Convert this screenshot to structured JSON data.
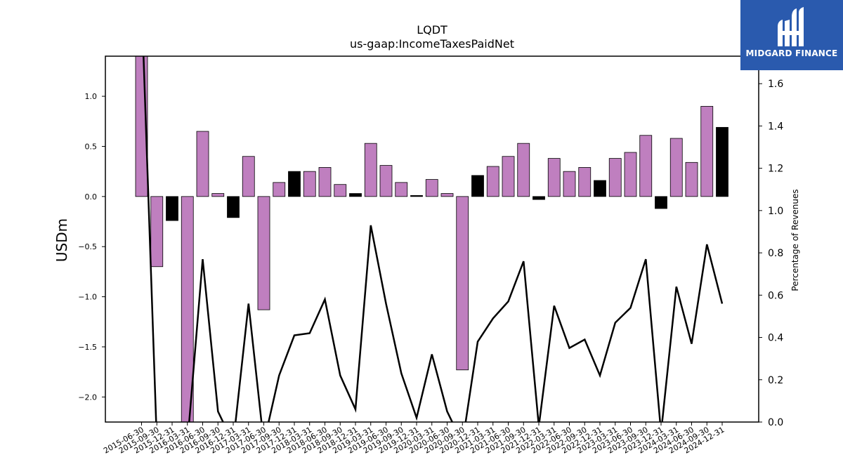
{
  "logo": {
    "text": "MIDGARD FINANCE"
  },
  "chart_data": {
    "type": "bar",
    "title": "LQDT",
    "subtitle": "us-gaap:IncomeTaxesPaidNet",
    "ylabel": "USDm",
    "ylabel_right": "Percentage of Revenues",
    "ylim": [
      -2.25,
      1.4
    ],
    "ylim_right": [
      0.0,
      1.73
    ],
    "yticks": [
      -2.0,
      -1.5,
      -1.0,
      -0.5,
      0.0,
      0.5,
      1.0
    ],
    "yticks_right": [
      0.0,
      0.2,
      0.4,
      0.6,
      0.8,
      1.0,
      1.2,
      1.4,
      1.6
    ],
    "grid": false,
    "categories": [
      "2015-06-30",
      "2015-09-30",
      "2015-12-31",
      "2016-03-31",
      "2016-06-30",
      "2016-09-30",
      "2016-12-31",
      "2017-03-31",
      "2017-06-30",
      "2017-09-30",
      "2017-12-31",
      "2018-03-31",
      "2018-06-30",
      "2018-09-30",
      "2018-12-31",
      "2019-03-31",
      "2019-06-30",
      "2019-09-30",
      "2019-12-31",
      "2020-03-31",
      "2020-06-30",
      "2020-09-30",
      "2020-12-31",
      "2021-03-31",
      "2021-06-30",
      "2021-09-30",
      "2021-12-31",
      "2022-03-31",
      "2022-06-30",
      "2022-09-30",
      "2022-12-31",
      "2023-03-31",
      "2023-06-30",
      "2023-09-30",
      "2023-12-31",
      "2024-03-31",
      "2024-06-30",
      "2024-09-30",
      "2024-12-31"
    ],
    "series": [
      {
        "type": "bar",
        "values": [
          1.45,
          -0.7,
          -0.24,
          -2.3,
          0.65,
          0.03,
          -0.21,
          0.4,
          -1.13,
          0.14,
          0.25,
          0.25,
          0.29,
          0.12,
          0.03,
          0.53,
          0.31,
          0.14,
          0.01,
          0.17,
          0.03,
          -1.73,
          0.21,
          0.3,
          0.4,
          0.53,
          -0.03,
          0.38,
          0.25,
          0.29,
          0.16,
          0.38,
          0.44,
          0.61,
          -0.12,
          0.58,
          0.34,
          0.9,
          0.69
        ],
        "colors": [
          "#bf7fbf",
          "#bf7fbf",
          "#000000",
          "#bf7fbf",
          "#bf7fbf",
          "#bf7fbf",
          "#000000",
          "#bf7fbf",
          "#bf7fbf",
          "#bf7fbf",
          "#000000",
          "#bf7fbf",
          "#bf7fbf",
          "#bf7fbf",
          "#000000",
          "#bf7fbf",
          "#bf7fbf",
          "#bf7fbf",
          "#000000",
          "#bf7fbf",
          "#bf7fbf",
          "#bf7fbf",
          "#000000",
          "#bf7fbf",
          "#bf7fbf",
          "#bf7fbf",
          "#000000",
          "#bf7fbf",
          "#bf7fbf",
          "#bf7fbf",
          "#000000",
          "#bf7fbf",
          "#bf7fbf",
          "#bf7fbf",
          "#000000",
          "#bf7fbf",
          "#bf7fbf",
          "#bf7fbf",
          "#000000"
        ]
      },
      {
        "type": "line",
        "axis": "right",
        "color": "#000000",
        "values": [
          2.0,
          -0.1,
          null,
          -0.1,
          0.77,
          0.05,
          -0.1,
          0.56,
          -0.1,
          0.22,
          0.41,
          0.42,
          0.58,
          0.22,
          0.06,
          0.93,
          0.56,
          0.23,
          0.02,
          0.32,
          0.05,
          -0.1,
          0.38,
          0.49,
          0.57,
          0.76,
          -0.02,
          0.55,
          0.35,
          0.39,
          0.22,
          0.47,
          0.54,
          0.77,
          -0.05,
          0.64,
          0.37,
          0.84,
          0.56
        ]
      }
    ]
  }
}
